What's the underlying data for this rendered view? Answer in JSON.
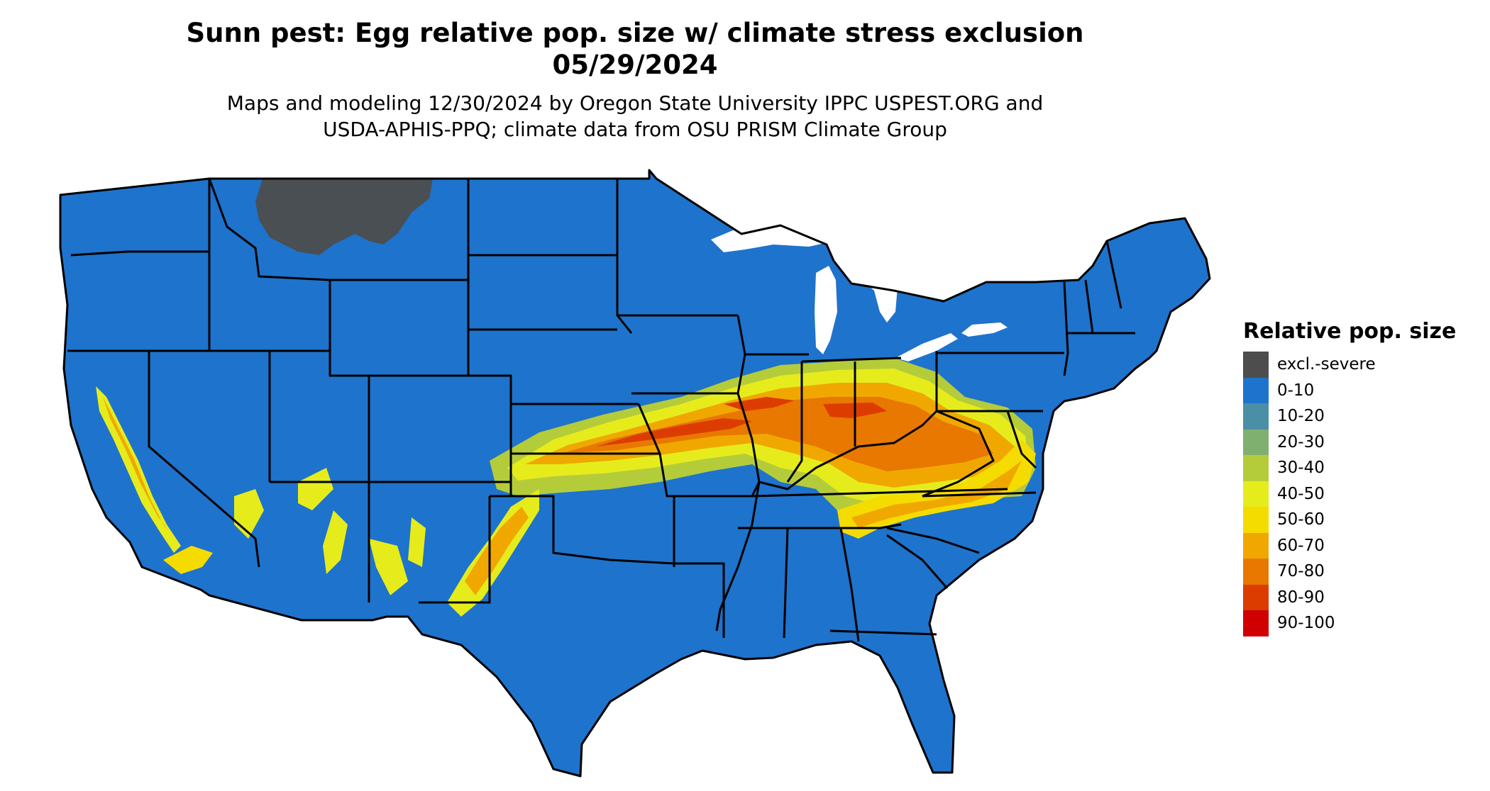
{
  "title": {
    "line1": "Sunn pest: Egg relative pop. size w/ climate stress exclusion",
    "line2": "05/29/2024"
  },
  "subtitle": {
    "line1": "Maps and modeling 12/30/2024 by Oregon State University IPPC USPEST.ORG and",
    "line2": "USDA-APHIS-PPQ; climate data from OSU PRISM Climate Group"
  },
  "legend": {
    "title": "Relative pop. size",
    "items": [
      {
        "label": "excl.-severe",
        "color": "#4d4d4d"
      },
      {
        "label": "0-10",
        "color": "#1e73cc"
      },
      {
        "label": "10-20",
        "color": "#4a8fa6"
      },
      {
        "label": "20-30",
        "color": "#7fb070"
      },
      {
        "label": "30-40",
        "color": "#b5cc3a"
      },
      {
        "label": "40-50",
        "color": "#e6ec1c"
      },
      {
        "label": "50-60",
        "color": "#f5dc00"
      },
      {
        "label": "60-70",
        "color": "#f0a800"
      },
      {
        "label": "70-80",
        "color": "#e87800"
      },
      {
        "label": "80-90",
        "color": "#dc3c00"
      },
      {
        "label": "90-100",
        "color": "#d00000"
      }
    ]
  },
  "map": {
    "region": "Contiguous United States",
    "base_color": "#1e73cc",
    "border_color": "#000000"
  }
}
